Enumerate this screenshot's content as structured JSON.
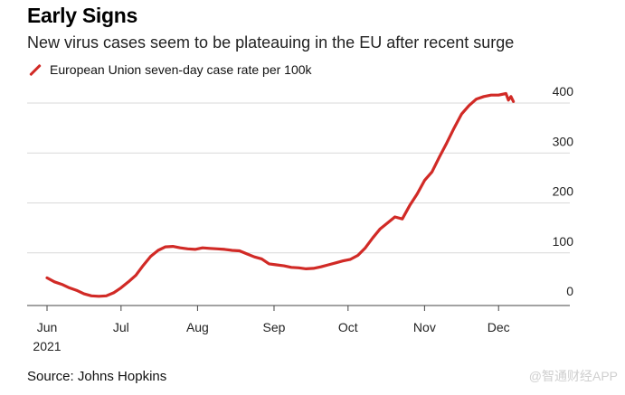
{
  "title": "Early Signs",
  "subtitle": "New virus cases seem to be plateauing in the EU after recent surge",
  "source": "Source: Johns Hopkins",
  "watermark": "@智通财经APP",
  "colors": {
    "series": "#d12a26",
    "grid": "#d9d9d9",
    "axis": "#444444"
  },
  "chart_data": {
    "type": "line",
    "title": "Early Signs",
    "subtitle": "New virus cases seem to be plateauing in the EU after recent surge",
    "xlabel": "",
    "ylabel": "",
    "ylim": [
      0,
      400
    ],
    "y_ticks": [
      0,
      100,
      200,
      300,
      400
    ],
    "x_range_days": [
      0,
      190
    ],
    "x_ticks": [
      {
        "label": "Jun",
        "day": 0,
        "sublabel": "2021"
      },
      {
        "label": "Jul",
        "day": 30
      },
      {
        "label": "Aug",
        "day": 61
      },
      {
        "label": "Sep",
        "day": 92
      },
      {
        "label": "Oct",
        "day": 122
      },
      {
        "label": "Nov",
        "day": 153
      },
      {
        "label": "Dec",
        "day": 183
      }
    ],
    "legend": "top-left",
    "series": [
      {
        "name": "European Union seven-day case rate per 100k",
        "x_unit": "days since Jun 1, 2021",
        "x": [
          0,
          3,
          6,
          9,
          12,
          15,
          18,
          21,
          24,
          27,
          30,
          33,
          36,
          39,
          42,
          45,
          48,
          51,
          54,
          57,
          60,
          63,
          66,
          69,
          72,
          75,
          78,
          81,
          84,
          87,
          90,
          93,
          96,
          99,
          102,
          105,
          108,
          111,
          114,
          117,
          120,
          123,
          126,
          129,
          132,
          135,
          138,
          141,
          144,
          147,
          150,
          153,
          156,
          159,
          162,
          165,
          168,
          171,
          174,
          177,
          180,
          183,
          186,
          187,
          188,
          189
        ],
        "values": [
          50,
          42,
          37,
          30,
          25,
          18,
          14,
          13,
          14,
          20,
          30,
          42,
          55,
          75,
          93,
          105,
          112,
          113,
          110,
          108,
          107,
          110,
          109,
          108,
          107,
          105,
          104,
          98,
          92,
          88,
          78,
          76,
          74,
          71,
          70,
          68,
          69,
          72,
          76,
          80,
          84,
          87,
          95,
          110,
          130,
          148,
          160,
          172,
          168,
          195,
          218,
          245,
          262,
          292,
          320,
          350,
          378,
          395,
          408,
          413,
          416,
          416,
          419,
          406,
          413,
          403
        ]
      }
    ]
  }
}
